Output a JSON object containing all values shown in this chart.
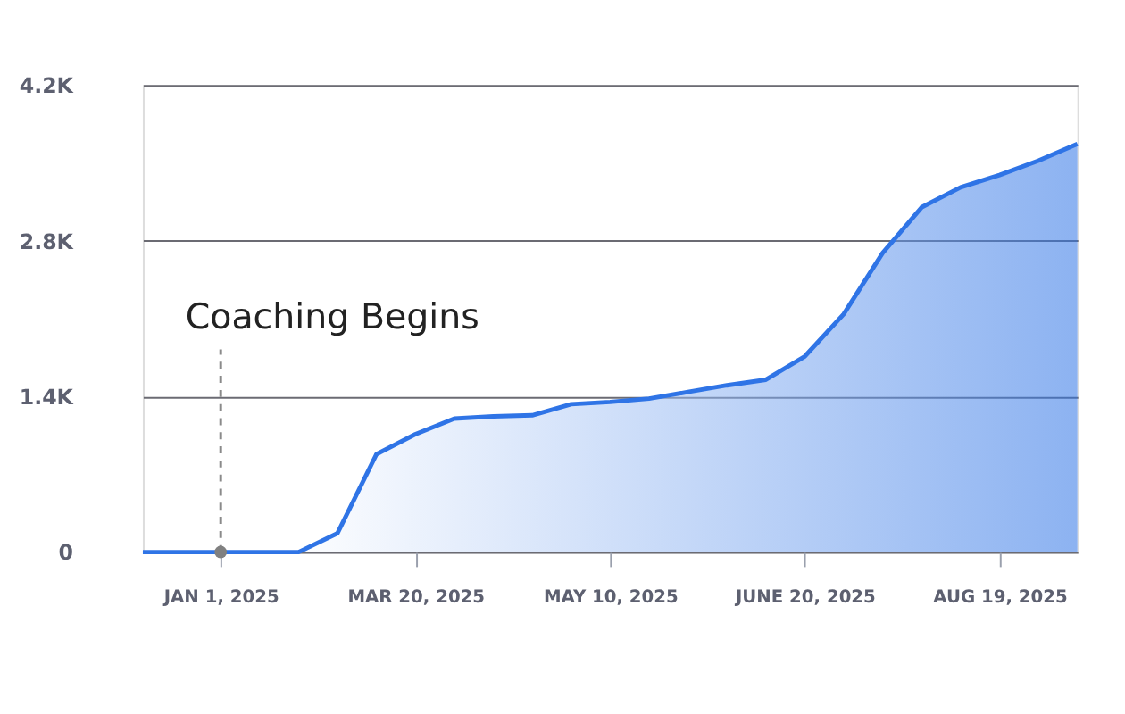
{
  "chart_data": {
    "type": "area",
    "categories": [
      null,
      null,
      "JAN 1, 2025",
      null,
      null,
      null,
      null,
      "MAR 20, 2025",
      null,
      null,
      null,
      null,
      "MAY 10, 2025",
      null,
      null,
      null,
      null,
      "JUNE 20, 2025",
      null,
      null,
      null,
      null,
      "AUG 19, 2025",
      null,
      null
    ],
    "series": [
      {
        "color": "#2f74e6",
        "values": [
          0,
          0,
          0,
          0,
          0,
          170,
          880,
          1060,
          1200,
          1220,
          1230,
          1330,
          1350,
          1380,
          1440,
          1500,
          1550,
          1760,
          2140,
          2690,
          3100,
          3280,
          3390,
          3520,
          3670
        ]
      }
    ],
    "ylim": [
      0,
      4200
    ],
    "yticks": [
      0,
      {
        "value": 1400,
        "label": "1.4K"
      },
      {
        "value": 2800,
        "label": "2.8K"
      },
      {
        "value": 4200,
        "label": "4.2K"
      }
    ],
    "grid": "y",
    "annotations": [
      {
        "text": "Coaching Begins",
        "x": "JAN 1, 2025",
        "y": 0
      }
    ]
  }
}
